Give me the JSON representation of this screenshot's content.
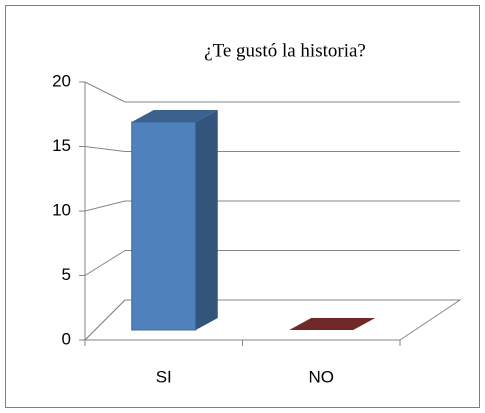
{
  "chart_data": {
    "type": "bar3d",
    "title": "¿Te gustó la historia?",
    "categories": [
      "SI",
      "NO"
    ],
    "values": [
      16,
      0
    ],
    "colors": [
      "#4f81bd",
      "#943634"
    ],
    "ylim": [
      0,
      20
    ],
    "yticks": [
      0,
      5,
      10,
      15,
      20
    ],
    "grid": true
  }
}
